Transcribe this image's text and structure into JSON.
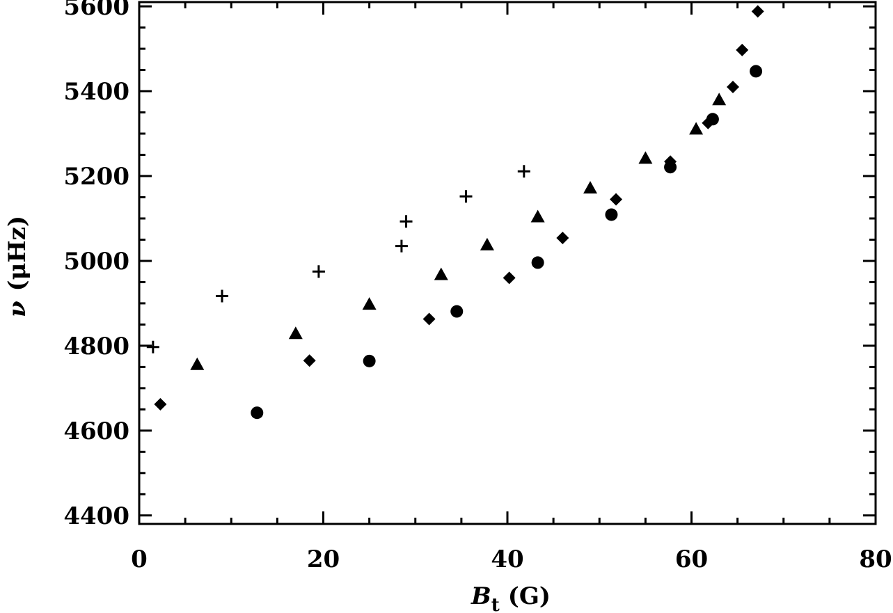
{
  "chart_data": {
    "type": "scatter",
    "title": "",
    "xlabel": "B_t (G)",
    "xlabel_parts": {
      "symbol": "B",
      "subscript": "t",
      "unit": "(G)"
    },
    "ylabel": "ν (μHz)",
    "ylabel_parts": {
      "symbol": "ν",
      "unit": "(μHz)"
    },
    "xlim": [
      0,
      80
    ],
    "ylim": [
      4380,
      5610
    ],
    "x_ticks": [
      0,
      20,
      40,
      60,
      80
    ],
    "x_tick_labels": [
      "0",
      "20",
      "40",
      "60",
      "80"
    ],
    "x_minor_step": 5,
    "y_ticks": [
      4400,
      4600,
      4800,
      5000,
      5200,
      5400,
      5600
    ],
    "y_tick_labels": [
      "4400",
      "4600",
      "4800",
      "5000",
      "5200",
      "5400",
      "5600"
    ],
    "y_minor_step": 50,
    "grid": false,
    "legend": "none",
    "marker_color": "#000000",
    "series": [
      {
        "marker": "plus",
        "points": [
          {
            "x": 1.5,
            "y": 4797
          },
          {
            "x": 9.0,
            "y": 4917
          },
          {
            "x": 19.5,
            "y": 4975
          },
          {
            "x": 28.5,
            "y": 5035
          },
          {
            "x": 29.0,
            "y": 5093
          },
          {
            "x": 35.5,
            "y": 5152
          },
          {
            "x": 41.8,
            "y": 5211
          }
        ]
      },
      {
        "marker": "triangle",
        "points": [
          {
            "x": 6.3,
            "y": 4756
          },
          {
            "x": 17.0,
            "y": 4829
          },
          {
            "x": 25.0,
            "y": 4898
          },
          {
            "x": 32.8,
            "y": 4968
          },
          {
            "x": 37.8,
            "y": 5038
          },
          {
            "x": 43.3,
            "y": 5104
          },
          {
            "x": 49.0,
            "y": 5172
          },
          {
            "x": 55.0,
            "y": 5242
          },
          {
            "x": 60.5,
            "y": 5311
          },
          {
            "x": 63.0,
            "y": 5380
          }
        ]
      },
      {
        "marker": "diamond",
        "points": [
          {
            "x": 2.3,
            "y": 4662
          },
          {
            "x": 18.5,
            "y": 4765
          },
          {
            "x": 31.5,
            "y": 4863
          },
          {
            "x": 40.2,
            "y": 4960
          },
          {
            "x": 46.0,
            "y": 5054
          },
          {
            "x": 51.8,
            "y": 5145
          },
          {
            "x": 57.7,
            "y": 5234
          },
          {
            "x": 61.8,
            "y": 5325
          },
          {
            "x": 64.5,
            "y": 5410
          },
          {
            "x": 65.5,
            "y": 5497
          },
          {
            "x": 67.2,
            "y": 5588
          }
        ]
      },
      {
        "marker": "circle",
        "points": [
          {
            "x": 12.8,
            "y": 4642
          },
          {
            "x": 25.0,
            "y": 4764
          },
          {
            "x": 34.5,
            "y": 4881
          },
          {
            "x": 43.3,
            "y": 4996
          },
          {
            "x": 51.3,
            "y": 5109
          },
          {
            "x": 57.7,
            "y": 5221
          },
          {
            "x": 62.3,
            "y": 5334
          },
          {
            "x": 67.0,
            "y": 5447
          }
        ]
      }
    ]
  }
}
